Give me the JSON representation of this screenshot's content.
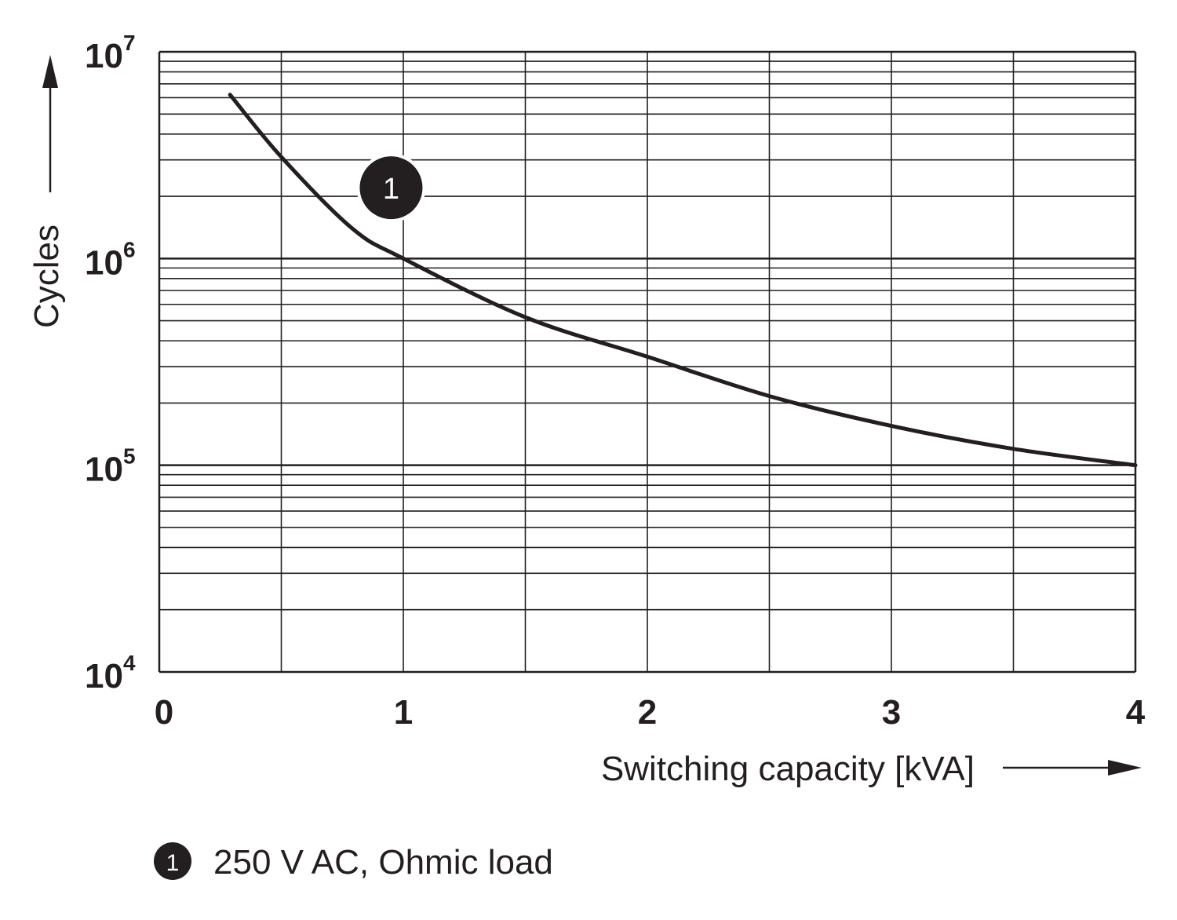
{
  "chart_data": {
    "type": "line",
    "title": "",
    "xlabel": "Switching capacity [kVA]",
    "ylabel": "Cycles",
    "xlim": [
      0,
      4
    ],
    "ylim": [
      10000,
      10000000
    ],
    "yscale": "log",
    "grid": true,
    "x_ticks": [
      "0",
      "1",
      "2",
      "3",
      "4"
    ],
    "y_ticks": [
      {
        "base": "10",
        "exp": "4",
        "value": 10000
      },
      {
        "base": "10",
        "exp": "5",
        "value": 100000
      },
      {
        "base": "10",
        "exp": "6",
        "value": 1000000
      },
      {
        "base": "10",
        "exp": "7",
        "value": 10000000
      }
    ],
    "series": [
      {
        "name": "1",
        "label": "250 V AC, Ohmic load",
        "x": [
          0.29,
          0.5,
          0.79,
          1.0,
          1.5,
          2.0,
          2.5,
          3.0,
          3.5,
          4.0
        ],
        "y": [
          6200000,
          3100000,
          1400000,
          1000000,
          520000,
          335000,
          216000,
          155000,
          120000,
          100000
        ],
        "marker_label": "1",
        "marker_x": 0.95,
        "marker_y": 2200000
      }
    ],
    "legend": {
      "placement": "bottom-left",
      "items": [
        {
          "marker": "1",
          "text": "250 V AC, Ohmic load"
        }
      ]
    },
    "colors": {
      "line": "#231f20",
      "grid": "#231f20"
    }
  }
}
